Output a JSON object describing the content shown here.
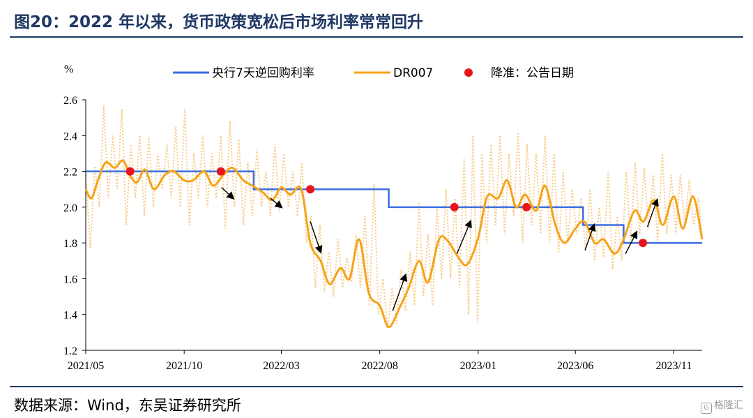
{
  "header": {
    "title": "图20：2022 年以来，货币政策宽松后市场利率常常回升"
  },
  "footer": {
    "source": "数据来源：Wind，东吴证券研究所",
    "watermark": "格隆汇"
  },
  "colors": {
    "omo": "#3b6ee0",
    "dr007_smooth": "#f5a31a",
    "dr007_daily": "#f8cc8a",
    "rrr_dot": "#e8151b",
    "rule": "#1f3864"
  },
  "chart_data": {
    "type": "line",
    "title": "",
    "xlabel": "",
    "ylabel": "%",
    "ylim": [
      1.2,
      2.6
    ],
    "yticks": [
      "1.2",
      "1.4",
      "1.6",
      "1.8",
      "2.0",
      "2.2",
      "2.4",
      "2.6"
    ],
    "xticks": [
      "2021/05",
      "2021/10",
      "2022/03",
      "2022/08",
      "2023/01",
      "2023/06",
      "2023/11"
    ],
    "xlim": [
      "2021-05-01",
      "2023-12-15"
    ],
    "legend_position": "top",
    "grid": false,
    "series": [
      {
        "name": "央行7天逆回购利率",
        "style": "step",
        "points": [
          [
            "2021-05-01",
            2.2
          ],
          [
            "2022-01-17",
            2.1
          ],
          [
            "2022-08-15",
            2.0
          ],
          [
            "2023-06-13",
            1.9
          ],
          [
            "2023-08-15",
            1.8
          ],
          [
            "2023-12-15",
            1.8
          ]
        ]
      },
      {
        "name": "DR007",
        "style": "line",
        "points": [
          [
            "2021-05-01",
            2.1
          ],
          [
            "2021-05-10",
            2.05
          ],
          [
            "2021-05-20",
            2.15
          ],
          [
            "2021-06-01",
            2.25
          ],
          [
            "2021-06-15",
            2.22
          ],
          [
            "2021-06-28",
            2.26
          ],
          [
            "2021-07-10",
            2.17
          ],
          [
            "2021-07-20",
            2.14
          ],
          [
            "2021-08-01",
            2.21
          ],
          [
            "2021-08-15",
            2.1
          ],
          [
            "2021-09-01",
            2.18
          ],
          [
            "2021-09-15",
            2.2
          ],
          [
            "2021-10-01",
            2.15
          ],
          [
            "2021-10-15",
            2.15
          ],
          [
            "2021-11-01",
            2.2
          ],
          [
            "2021-11-15",
            2.12
          ],
          [
            "2021-12-01",
            2.18
          ],
          [
            "2021-12-15",
            2.22
          ],
          [
            "2022-01-01",
            2.15
          ],
          [
            "2022-01-15",
            2.12
          ],
          [
            "2022-02-01",
            2.08
          ],
          [
            "2022-02-15",
            2.04
          ],
          [
            "2022-03-01",
            2.11
          ],
          [
            "2022-03-15",
            2.07
          ],
          [
            "2022-04-01",
            2.1
          ],
          [
            "2022-04-15",
            1.8
          ],
          [
            "2022-05-01",
            1.7
          ],
          [
            "2022-05-15",
            1.57
          ],
          [
            "2022-06-01",
            1.66
          ],
          [
            "2022-06-15",
            1.6
          ],
          [
            "2022-06-30",
            1.82
          ],
          [
            "2022-07-15",
            1.52
          ],
          [
            "2022-08-01",
            1.45
          ],
          [
            "2022-08-15",
            1.33
          ],
          [
            "2022-09-01",
            1.44
          ],
          [
            "2022-09-15",
            1.55
          ],
          [
            "2022-10-01",
            1.7
          ],
          [
            "2022-10-15",
            1.58
          ],
          [
            "2022-11-01",
            1.82
          ],
          [
            "2022-11-15",
            1.81
          ],
          [
            "2022-12-01",
            1.72
          ],
          [
            "2022-12-15",
            1.68
          ],
          [
            "2023-01-01",
            1.83
          ],
          [
            "2023-01-15",
            2.06
          ],
          [
            "2023-02-01",
            2.05
          ],
          [
            "2023-02-15",
            2.15
          ],
          [
            "2023-03-01",
            2.0
          ],
          [
            "2023-03-15",
            2.07
          ],
          [
            "2023-04-01",
            1.98
          ],
          [
            "2023-04-15",
            2.12
          ],
          [
            "2023-05-01",
            1.9
          ],
          [
            "2023-05-15",
            1.8
          ],
          [
            "2023-06-01",
            1.88
          ],
          [
            "2023-06-15",
            1.92
          ],
          [
            "2023-07-01",
            1.8
          ],
          [
            "2023-07-15",
            1.82
          ],
          [
            "2023-08-01",
            1.74
          ],
          [
            "2023-08-15",
            1.82
          ],
          [
            "2023-09-01",
            1.98
          ],
          [
            "2023-09-15",
            1.92
          ],
          [
            "2023-10-01",
            2.04
          ],
          [
            "2023-10-15",
            1.9
          ],
          [
            "2023-11-01",
            2.06
          ],
          [
            "2023-11-15",
            1.88
          ],
          [
            "2023-12-01",
            2.06
          ],
          [
            "2023-12-15",
            1.82
          ]
        ]
      },
      {
        "name": "降准：公告日期",
        "style": "dots",
        "points": [
          [
            "2021-07-09",
            2.2
          ],
          [
            "2021-11-27",
            2.2
          ],
          [
            "2022-04-15",
            2.1
          ],
          [
            "2022-11-25",
            2.0
          ],
          [
            "2023-03-17",
            2.0
          ],
          [
            "2023-09-14",
            1.8
          ]
        ]
      }
    ],
    "daily_dr007_approx": [
      [
        "2021-05-01",
        2.2
      ],
      [
        "2021-05-08",
        1.77
      ],
      [
        "2021-05-15",
        2.23
      ],
      [
        "2021-05-22",
        2.0
      ],
      [
        "2021-05-29",
        2.57
      ],
      [
        "2021-06-05",
        2.05
      ],
      [
        "2021-06-12",
        2.4
      ],
      [
        "2021-06-19",
        2.1
      ],
      [
        "2021-06-26",
        2.55
      ],
      [
        "2021-07-03",
        1.9
      ],
      [
        "2021-07-10",
        2.35
      ],
      [
        "2021-07-17",
        2.05
      ],
      [
        "2021-07-24",
        2.4
      ],
      [
        "2021-07-31",
        1.95
      ],
      [
        "2021-08-07",
        2.4
      ],
      [
        "2021-08-14",
        2.0
      ],
      [
        "2021-08-21",
        2.3
      ],
      [
        "2021-08-28",
        2.1
      ],
      [
        "2021-09-04",
        2.35
      ],
      [
        "2021-09-11",
        2.05
      ],
      [
        "2021-09-18",
        2.45
      ],
      [
        "2021-09-25",
        2.0
      ],
      [
        "2021-10-02",
        2.55
      ],
      [
        "2021-10-09",
        1.9
      ],
      [
        "2021-10-16",
        2.3
      ],
      [
        "2021-10-23",
        2.05
      ],
      [
        "2021-10-30",
        2.4
      ],
      [
        "2021-11-06",
        2.0
      ],
      [
        "2021-11-13",
        2.3
      ],
      [
        "2021-11-20",
        2.05
      ],
      [
        "2021-11-27",
        2.4
      ],
      [
        "2021-12-04",
        1.88
      ],
      [
        "2021-12-11",
        2.48
      ],
      [
        "2021-12-18",
        2.0
      ],
      [
        "2021-12-25",
        2.38
      ],
      [
        "2022-01-01",
        1.9
      ],
      [
        "2022-01-08",
        2.25
      ],
      [
        "2022-01-15",
        1.95
      ],
      [
        "2022-01-22",
        2.32
      ],
      [
        "2022-01-29",
        2.0
      ],
      [
        "2022-02-05",
        2.2
      ],
      [
        "2022-02-12",
        1.95
      ],
      [
        "2022-02-19",
        2.35
      ],
      [
        "2022-02-26",
        1.98
      ],
      [
        "2022-03-05",
        2.3
      ],
      [
        "2022-03-12",
        2.0
      ],
      [
        "2022-03-19",
        2.2
      ],
      [
        "2022-03-26",
        1.95
      ],
      [
        "2022-04-02",
        2.25
      ],
      [
        "2022-04-09",
        1.8
      ],
      [
        "2022-04-16",
        1.95
      ],
      [
        "2022-04-23",
        1.55
      ],
      [
        "2022-04-30",
        1.9
      ],
      [
        "2022-05-07",
        1.53
      ],
      [
        "2022-05-14",
        1.75
      ],
      [
        "2022-05-21",
        1.5
      ],
      [
        "2022-05-28",
        1.82
      ],
      [
        "2022-06-04",
        1.55
      ],
      [
        "2022-06-11",
        1.72
      ],
      [
        "2022-06-18",
        1.58
      ],
      [
        "2022-06-25",
        1.85
      ],
      [
        "2022-07-02",
        1.55
      ],
      [
        "2022-07-09",
        1.95
      ],
      [
        "2022-07-16",
        1.45
      ],
      [
        "2022-07-23",
        2.13
      ],
      [
        "2022-07-30",
        1.4
      ],
      [
        "2022-08-06",
        1.6
      ],
      [
        "2022-08-13",
        1.32
      ],
      [
        "2022-08-20",
        1.55
      ],
      [
        "2022-08-27",
        1.35
      ],
      [
        "2022-09-03",
        1.65
      ],
      [
        "2022-09-10",
        1.42
      ],
      [
        "2022-09-17",
        1.75
      ],
      [
        "2022-09-24",
        1.45
      ],
      [
        "2022-10-01",
        2.03
      ],
      [
        "2022-10-08",
        1.5
      ],
      [
        "2022-10-15",
        1.85
      ],
      [
        "2022-10-22",
        1.45
      ],
      [
        "2022-10-29",
        2.0
      ],
      [
        "2022-11-05",
        1.6
      ],
      [
        "2022-11-12",
        2.1
      ],
      [
        "2022-11-19",
        1.6
      ],
      [
        "2022-11-26",
        2.05
      ],
      [
        "2022-12-03",
        1.55
      ],
      [
        "2022-12-10",
        2.27
      ],
      [
        "2022-12-17",
        1.4
      ],
      [
        "2022-12-24",
        2.4
      ],
      [
        "2022-12-31",
        1.36
      ],
      [
        "2023-01-07",
        2.3
      ],
      [
        "2023-01-14",
        1.8
      ],
      [
        "2023-01-21",
        2.35
      ],
      [
        "2023-01-28",
        1.9
      ],
      [
        "2023-02-04",
        2.4
      ],
      [
        "2023-02-11",
        1.85
      ],
      [
        "2023-02-18",
        2.3
      ],
      [
        "2023-02-25",
        1.95
      ],
      [
        "2023-03-04",
        2.42
      ],
      [
        "2023-03-11",
        1.8
      ],
      [
        "2023-03-18",
        2.35
      ],
      [
        "2023-03-25",
        1.9
      ],
      [
        "2023-04-01",
        2.3
      ],
      [
        "2023-04-08",
        1.85
      ],
      [
        "2023-04-15",
        2.4
      ],
      [
        "2023-04-22",
        1.8
      ],
      [
        "2023-04-29",
        2.3
      ],
      [
        "2023-05-06",
        1.75
      ],
      [
        "2023-05-13",
        2.2
      ],
      [
        "2023-05-20",
        1.8
      ],
      [
        "2023-05-27",
        2.1
      ],
      [
        "2023-06-03",
        1.85
      ],
      [
        "2023-06-10",
        2.05
      ],
      [
        "2023-06-17",
        1.75
      ],
      [
        "2023-06-24",
        2.1
      ],
      [
        "2023-07-01",
        1.7
      ],
      [
        "2023-07-08",
        2.0
      ],
      [
        "2023-07-15",
        1.72
      ],
      [
        "2023-07-22",
        2.2
      ],
      [
        "2023-07-29",
        1.65
      ],
      [
        "2023-08-05",
        1.95
      ],
      [
        "2023-08-12",
        1.7
      ],
      [
        "2023-08-19",
        2.2
      ],
      [
        "2023-08-26",
        1.8
      ],
      [
        "2023-09-02",
        2.25
      ],
      [
        "2023-09-09",
        1.85
      ],
      [
        "2023-09-16",
        2.22
      ],
      [
        "2023-09-23",
        1.88
      ],
      [
        "2023-09-30",
        2.18
      ],
      [
        "2023-10-07",
        1.8
      ],
      [
        "2023-10-14",
        2.3
      ],
      [
        "2023-10-21",
        1.85
      ],
      [
        "2023-10-28",
        2.18
      ],
      [
        "2023-11-04",
        1.85
      ],
      [
        "2023-11-11",
        2.18
      ],
      [
        "2023-11-18",
        1.9
      ],
      [
        "2023-11-25",
        2.15
      ],
      [
        "2023-12-02",
        1.9
      ],
      [
        "2023-12-09",
        2.05
      ],
      [
        "2023-12-15",
        1.85
      ]
    ],
    "arrows": [
      [
        [
          "2021-11-28",
          2.11
        ],
        [
          "2021-12-16",
          2.05
        ]
      ],
      [
        [
          "2022-02-12",
          2.05
        ],
        [
          "2022-03-01",
          2.0
        ]
      ],
      [
        [
          "2022-04-15",
          1.92
        ],
        [
          "2022-05-01",
          1.75
        ]
      ],
      [
        [
          "2022-08-21",
          1.42
        ],
        [
          "2022-09-10",
          1.62
        ]
      ],
      [
        [
          "2022-11-29",
          1.74
        ],
        [
          "2022-12-20",
          1.92
        ]
      ],
      [
        [
          "2023-06-16",
          1.76
        ],
        [
          "2023-06-30",
          1.9
        ]
      ],
      [
        [
          "2023-08-18",
          1.74
        ],
        [
          "2023-09-04",
          1.86
        ]
      ],
      [
        [
          "2023-09-21",
          1.89
        ],
        [
          "2023-10-06",
          2.04
        ]
      ]
    ]
  }
}
